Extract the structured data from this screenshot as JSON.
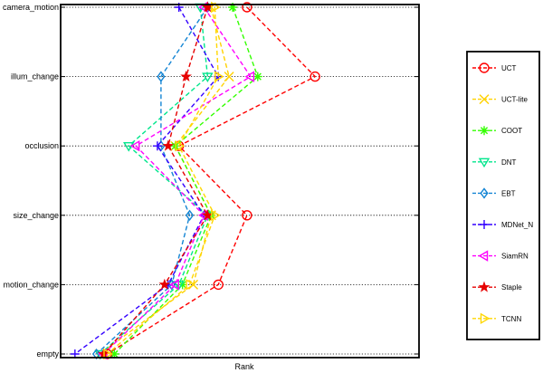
{
  "chart_data": {
    "type": "line",
    "title": "",
    "xlabel": "Rank",
    "ylabel": "",
    "xlim": [
      0,
      10
    ],
    "grid": "horizontal dotted",
    "legend_position": "outside-right",
    "categories": [
      "camera_motion",
      "illum_change",
      "occlusion",
      "size_change",
      "motion_change",
      "empty"
    ],
    "series": [
      {
        "name": "UCT",
        "color": "#ff0000",
        "marker": "circle",
        "values": [
          5.2,
          7.1,
          3.3,
          5.2,
          4.4,
          1.3
        ]
      },
      {
        "name": "UCT-lite",
        "color": "#ffd200",
        "marker": "x",
        "values": [
          4.2,
          4.7,
          3.2,
          4.2,
          3.7,
          1.1
        ]
      },
      {
        "name": "COOT",
        "color": "#33ff00",
        "marker": "asterisk",
        "values": [
          4.8,
          5.5,
          3.2,
          4.2,
          3.4,
          1.5
        ]
      },
      {
        "name": "DNT",
        "color": "#00e68c",
        "marker": "triangle-down",
        "values": [
          3.9,
          4.1,
          1.9,
          4.1,
          3.3,
          1.1
        ]
      },
      {
        "name": "EBT",
        "color": "#1485d4",
        "marker": "diamond",
        "values": [
          4.1,
          2.8,
          2.8,
          3.6,
          3.1,
          1.0
        ]
      },
      {
        "name": "MDNet_N",
        "color": "#3300ff",
        "marker": "plus",
        "values": [
          3.3,
          4.4,
          2.7,
          4.0,
          3.0,
          0.4
        ]
      },
      {
        "name": "SiamRN",
        "color": "#ff00ff",
        "marker": "triangle-left",
        "values": [
          4.0,
          5.3,
          2.1,
          4.0,
          3.2,
          1.2
        ]
      },
      {
        "name": "Staple",
        "color": "#e60000",
        "marker": "star",
        "values": [
          4.1,
          3.5,
          3.0,
          4.1,
          2.9,
          1.2
        ]
      },
      {
        "name": "TCNN",
        "color": "#ffd700",
        "marker": "triangle-right",
        "values": [
          4.3,
          4.4,
          3.3,
          4.3,
          3.6,
          1.3
        ]
      }
    ]
  }
}
